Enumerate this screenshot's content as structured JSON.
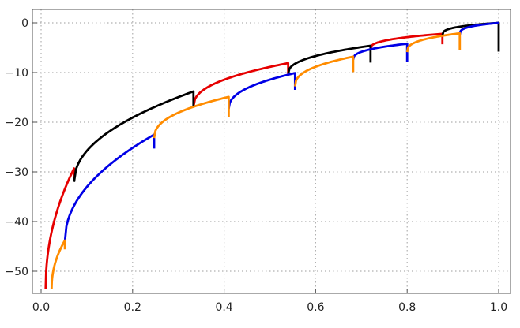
{
  "chart_data": {
    "type": "line",
    "title": "",
    "xlabel": "",
    "ylabel": "",
    "xlim": [
      0.0,
      1.0
    ],
    "ylim": [
      -56,
      2
    ],
    "x_ticks": [
      0.0,
      0.2,
      0.4,
      0.6,
      0.8,
      1.0
    ],
    "x_tick_labels": [
      "0.0",
      "0.2",
      "0.4",
      "0.6",
      "0.8",
      "1.0"
    ],
    "y_ticks": [
      0,
      -10,
      -20,
      -30,
      -40,
      -50
    ],
    "y_tick_labels": [
      "0",
      "−10",
      "−20",
      "−30",
      "−40",
      "−50"
    ],
    "grid": true,
    "series": [
      {
        "color": "#e60000",
        "segments": [
          {
            "start": [
              0.01,
              -53.5
            ],
            "end": [
              0.072,
              -29.3
            ],
            "curve": 0.48,
            "dip": -31.8
          },
          {
            "start": [
              0.333,
              -16.8
            ],
            "end": [
              0.54,
              -8.1
            ],
            "curve": 0.43,
            "dip": -10.6
          },
          {
            "start": [
              0.72,
              -5.2
            ],
            "end": [
              0.877,
              -2.2
            ],
            "curve": 0.38,
            "dip": -4.3
          }
        ]
      },
      {
        "color": "#000000",
        "segments": [
          {
            "start": [
              0.072,
              -32.0
            ],
            "end": [
              0.333,
              -13.8
            ],
            "curve": 0.48,
            "dip": -16.8
          },
          {
            "start": [
              0.54,
              -10.2
            ],
            "end": [
              0.72,
              -4.6
            ],
            "curve": 0.42,
            "dip": -8.0
          },
          {
            "start": [
              0.877,
              -2.6
            ],
            "end": [
              1.0,
              0.0
            ],
            "curve": 0.3,
            "dip": -5.8
          }
        ]
      },
      {
        "color": "#0000e6",
        "segments": [
          {
            "start": [
              0.052,
              -44.0
            ],
            "end": [
              0.247,
              -22.5
            ],
            "curve": 0.48,
            "dip": -25.3
          },
          {
            "start": [
              0.41,
              -17.3
            ],
            "end": [
              0.555,
              -10.1
            ],
            "curve": 0.43,
            "dip": -13.5
          },
          {
            "start": [
              0.682,
              -7.4
            ],
            "end": [
              0.8,
              -4.2
            ],
            "curve": 0.38,
            "dip": -7.8
          },
          {
            "start": [
              0.915,
              -2.4
            ],
            "end": [
              1.0,
              0.0
            ],
            "curve": 0.3
          }
        ]
      },
      {
        "color": "#ff8c00",
        "segments": [
          {
            "start": [
              0.023,
              -53.5
            ],
            "end": [
              0.052,
              -43.8
            ],
            "curve": 0.48,
            "dip": -45.6
          },
          {
            "start": [
              0.247,
              -23.2
            ],
            "end": [
              0.41,
              -14.9
            ],
            "curve": 0.43,
            "dip": -18.9
          },
          {
            "start": [
              0.555,
              -12.8
            ],
            "end": [
              0.682,
              -6.8
            ],
            "curve": 0.4,
            "dip": -9.9
          },
          {
            "start": [
              0.8,
              -5.9
            ],
            "end": [
              0.915,
              -2.1
            ],
            "curve": 0.35,
            "dip": -5.4
          }
        ]
      }
    ]
  }
}
